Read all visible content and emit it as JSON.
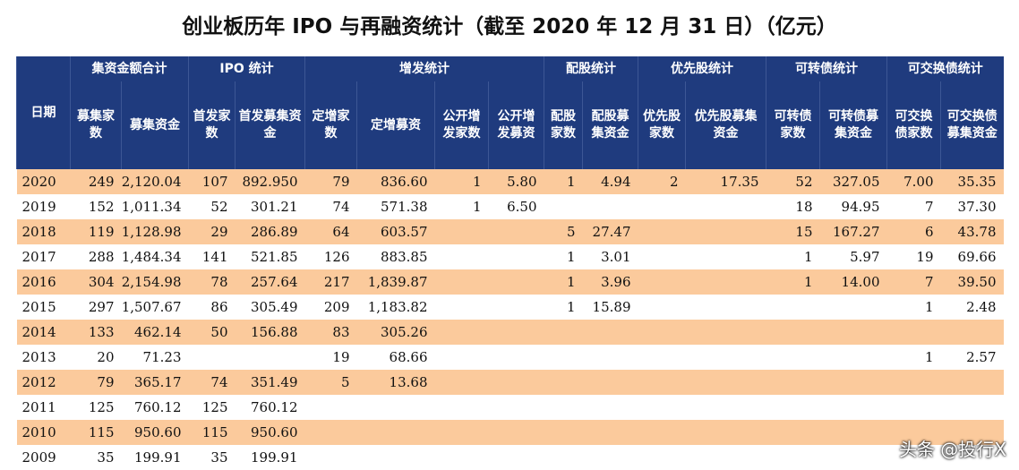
{
  "title": "创业板历年 IPO 与再融资统计（截至 2020 年 12 月 31 日）（亿元）",
  "table": {
    "groups": [
      "集资金额合计",
      "IPO 统计",
      "增发统计",
      "配股统计",
      "优先股统计",
      "可转债统计",
      "可交换债统计"
    ],
    "columns": [
      "日期",
      "募集家数",
      "募集资金",
      "首发家数",
      "首发募集资金",
      "定增家数",
      "定增募资",
      "公开增发家数",
      "公开增发募资",
      "配股家数",
      "配股募集资金",
      "优先股家数",
      "优先股募集资金",
      "可转债家数",
      "可转债募集资金",
      "可交换债家数",
      "可交换债募集资金"
    ],
    "rows": [
      [
        "2020",
        "249",
        "2,120.04",
        "107",
        "892.950",
        "79",
        "836.60",
        "1",
        "5.80",
        "1",
        "4.94",
        "2",
        "17.35",
        "52",
        "327.05",
        "7.00",
        "35.35"
      ],
      [
        "2019",
        "152",
        "1,011.34",
        "52",
        "301.21",
        "74",
        "571.38",
        "1",
        "6.50",
        null,
        null,
        null,
        null,
        "18",
        "94.95",
        "7",
        "37.30"
      ],
      [
        "2018",
        "119",
        "1,128.98",
        "29",
        "286.89",
        "64",
        "603.57",
        null,
        null,
        "5",
        "27.47",
        null,
        null,
        "15",
        "167.27",
        "6",
        "43.78"
      ],
      [
        "2017",
        "288",
        "1,484.34",
        "141",
        "521.85",
        "126",
        "883.85",
        null,
        null,
        "1",
        "3.01",
        null,
        null,
        "1",
        "5.97",
        "19",
        "69.66"
      ],
      [
        "2016",
        "304",
        "2,154.98",
        "78",
        "257.64",
        "217",
        "1,839.87",
        null,
        null,
        "1",
        "3.96",
        null,
        null,
        "1",
        "14.00",
        "7",
        "39.50"
      ],
      [
        "2015",
        "297",
        "1,507.67",
        "86",
        "305.49",
        "209",
        "1,183.82",
        null,
        null,
        "1",
        "15.89",
        null,
        null,
        null,
        null,
        "1",
        "2.48"
      ],
      [
        "2014",
        "133",
        "462.14",
        "50",
        "156.88",
        "83",
        "305.26",
        null,
        null,
        null,
        null,
        null,
        null,
        null,
        null,
        null,
        null
      ],
      [
        "2013",
        "20",
        "71.23",
        null,
        null,
        "19",
        "68.66",
        null,
        null,
        null,
        null,
        null,
        null,
        null,
        null,
        "1",
        "2.57"
      ],
      [
        "2012",
        "79",
        "365.17",
        "74",
        "351.49",
        "5",
        "13.68",
        null,
        null,
        null,
        null,
        null,
        null,
        null,
        null,
        null,
        null
      ],
      [
        "2011",
        "125",
        "760.12",
        "125",
        "760.12",
        null,
        null,
        null,
        null,
        null,
        null,
        null,
        null,
        null,
        null,
        null,
        null
      ],
      [
        "2010",
        "115",
        "950.60",
        "115",
        "950.60",
        null,
        null,
        null,
        null,
        null,
        null,
        null,
        null,
        null,
        null,
        null,
        null
      ],
      [
        "2009",
        "35",
        "199.91",
        "35",
        "199.91",
        null,
        null,
        null,
        null,
        null,
        null,
        null,
        null,
        null,
        null,
        null,
        null
      ]
    ]
  },
  "watermark": "头条 @投行X"
}
